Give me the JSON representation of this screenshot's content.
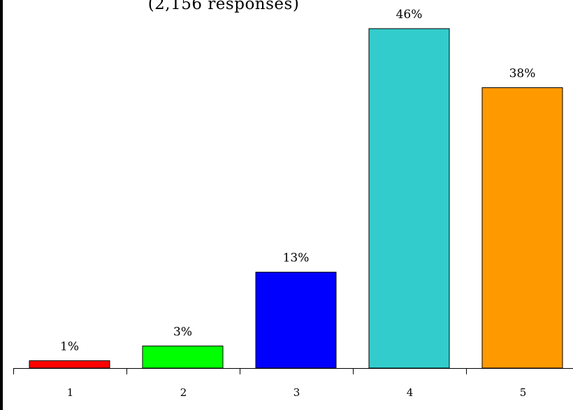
{
  "chart_data": {
    "type": "bar",
    "title": "",
    "subtitle": "(2,156 responses)",
    "xlabel": "",
    "ylabel": "",
    "categories": [
      "1",
      "2",
      "3",
      "4",
      "5"
    ],
    "values": [
      1,
      3,
      13,
      46,
      38
    ],
    "data_labels": [
      "1%",
      "3%",
      "13%",
      "46%",
      "38%"
    ],
    "colors": [
      "#ff0000",
      "#00ff00",
      "#0000ff",
      "#33cccc",
      "#ff9900"
    ],
    "ylim": [
      0,
      46
    ],
    "grid": false,
    "legend": "none"
  }
}
